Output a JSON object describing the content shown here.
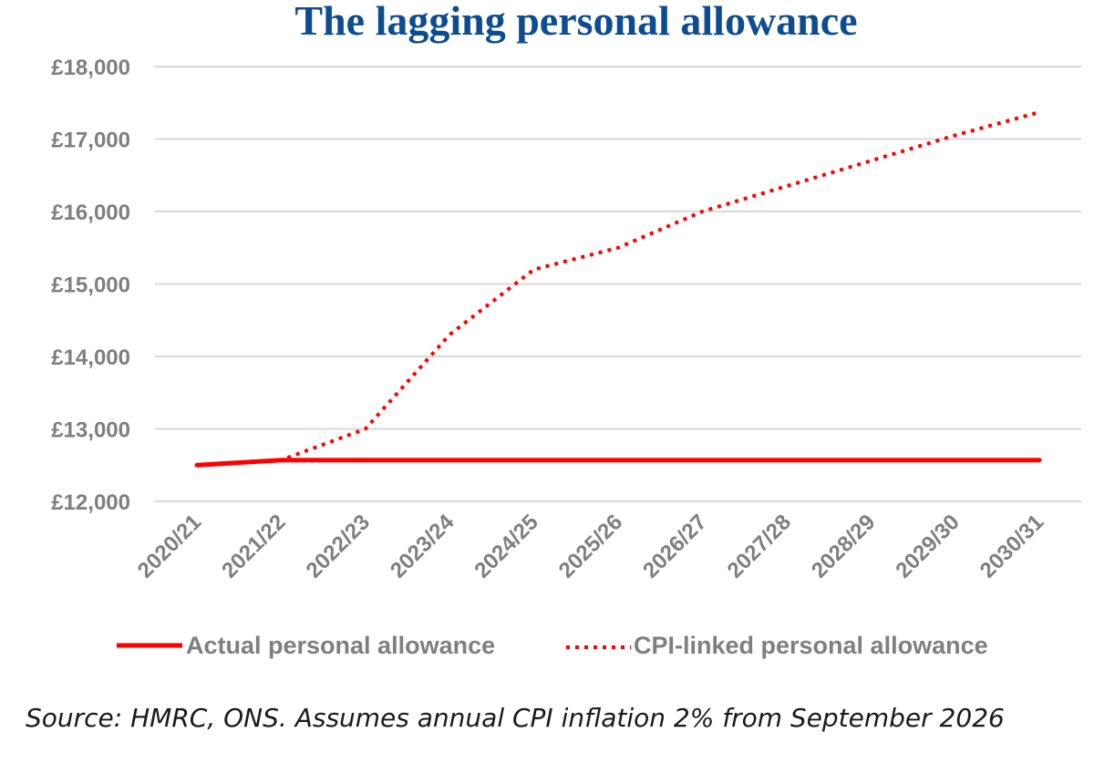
{
  "colors": {
    "title": "#0e4c92",
    "series_line": "#ff0000",
    "tick_text": "#7f7f7f",
    "gridline": "#d9d9d9",
    "source_text": "#1a1a1a"
  },
  "source": "Source: HMRC, ONS. Assumes annual CPI inflation 2% from September 2026",
  "chart_data": {
    "type": "line",
    "title": "The lagging personal allowance",
    "xlabel": "",
    "ylabel": "",
    "categories": [
      "2020/21",
      "2021/22",
      "2022/23",
      "2023/24",
      "2024/25",
      "2025/26",
      "2026/27",
      "2027/28",
      "2028/29",
      "2029/30",
      "2030/31"
    ],
    "ylim": [
      12000,
      18000
    ],
    "yticks": [
      12000,
      13000,
      14000,
      15000,
      16000,
      17000,
      18000
    ],
    "ytick_labels": [
      "£12,000",
      "£13,000",
      "£14,000",
      "£15,000",
      "£16,000",
      "£17,000",
      "£18,000"
    ],
    "grid": true,
    "legend_position": "bottom",
    "series": [
      {
        "name": "Actual personal allowance",
        "style": "solid",
        "color": "#ff0000",
        "values": [
          12500,
          12570,
          12570,
          12570,
          12570,
          12570,
          12570,
          12570,
          12570,
          12570,
          12570
        ]
      },
      {
        "name": "CPI-linked personal allowance",
        "style": "dotted",
        "color": "#ff0000",
        "values": [
          12500,
          12570,
          13000,
          14300,
          15200,
          15500,
          16000,
          16350,
          16700,
          17050,
          17370
        ]
      }
    ]
  }
}
